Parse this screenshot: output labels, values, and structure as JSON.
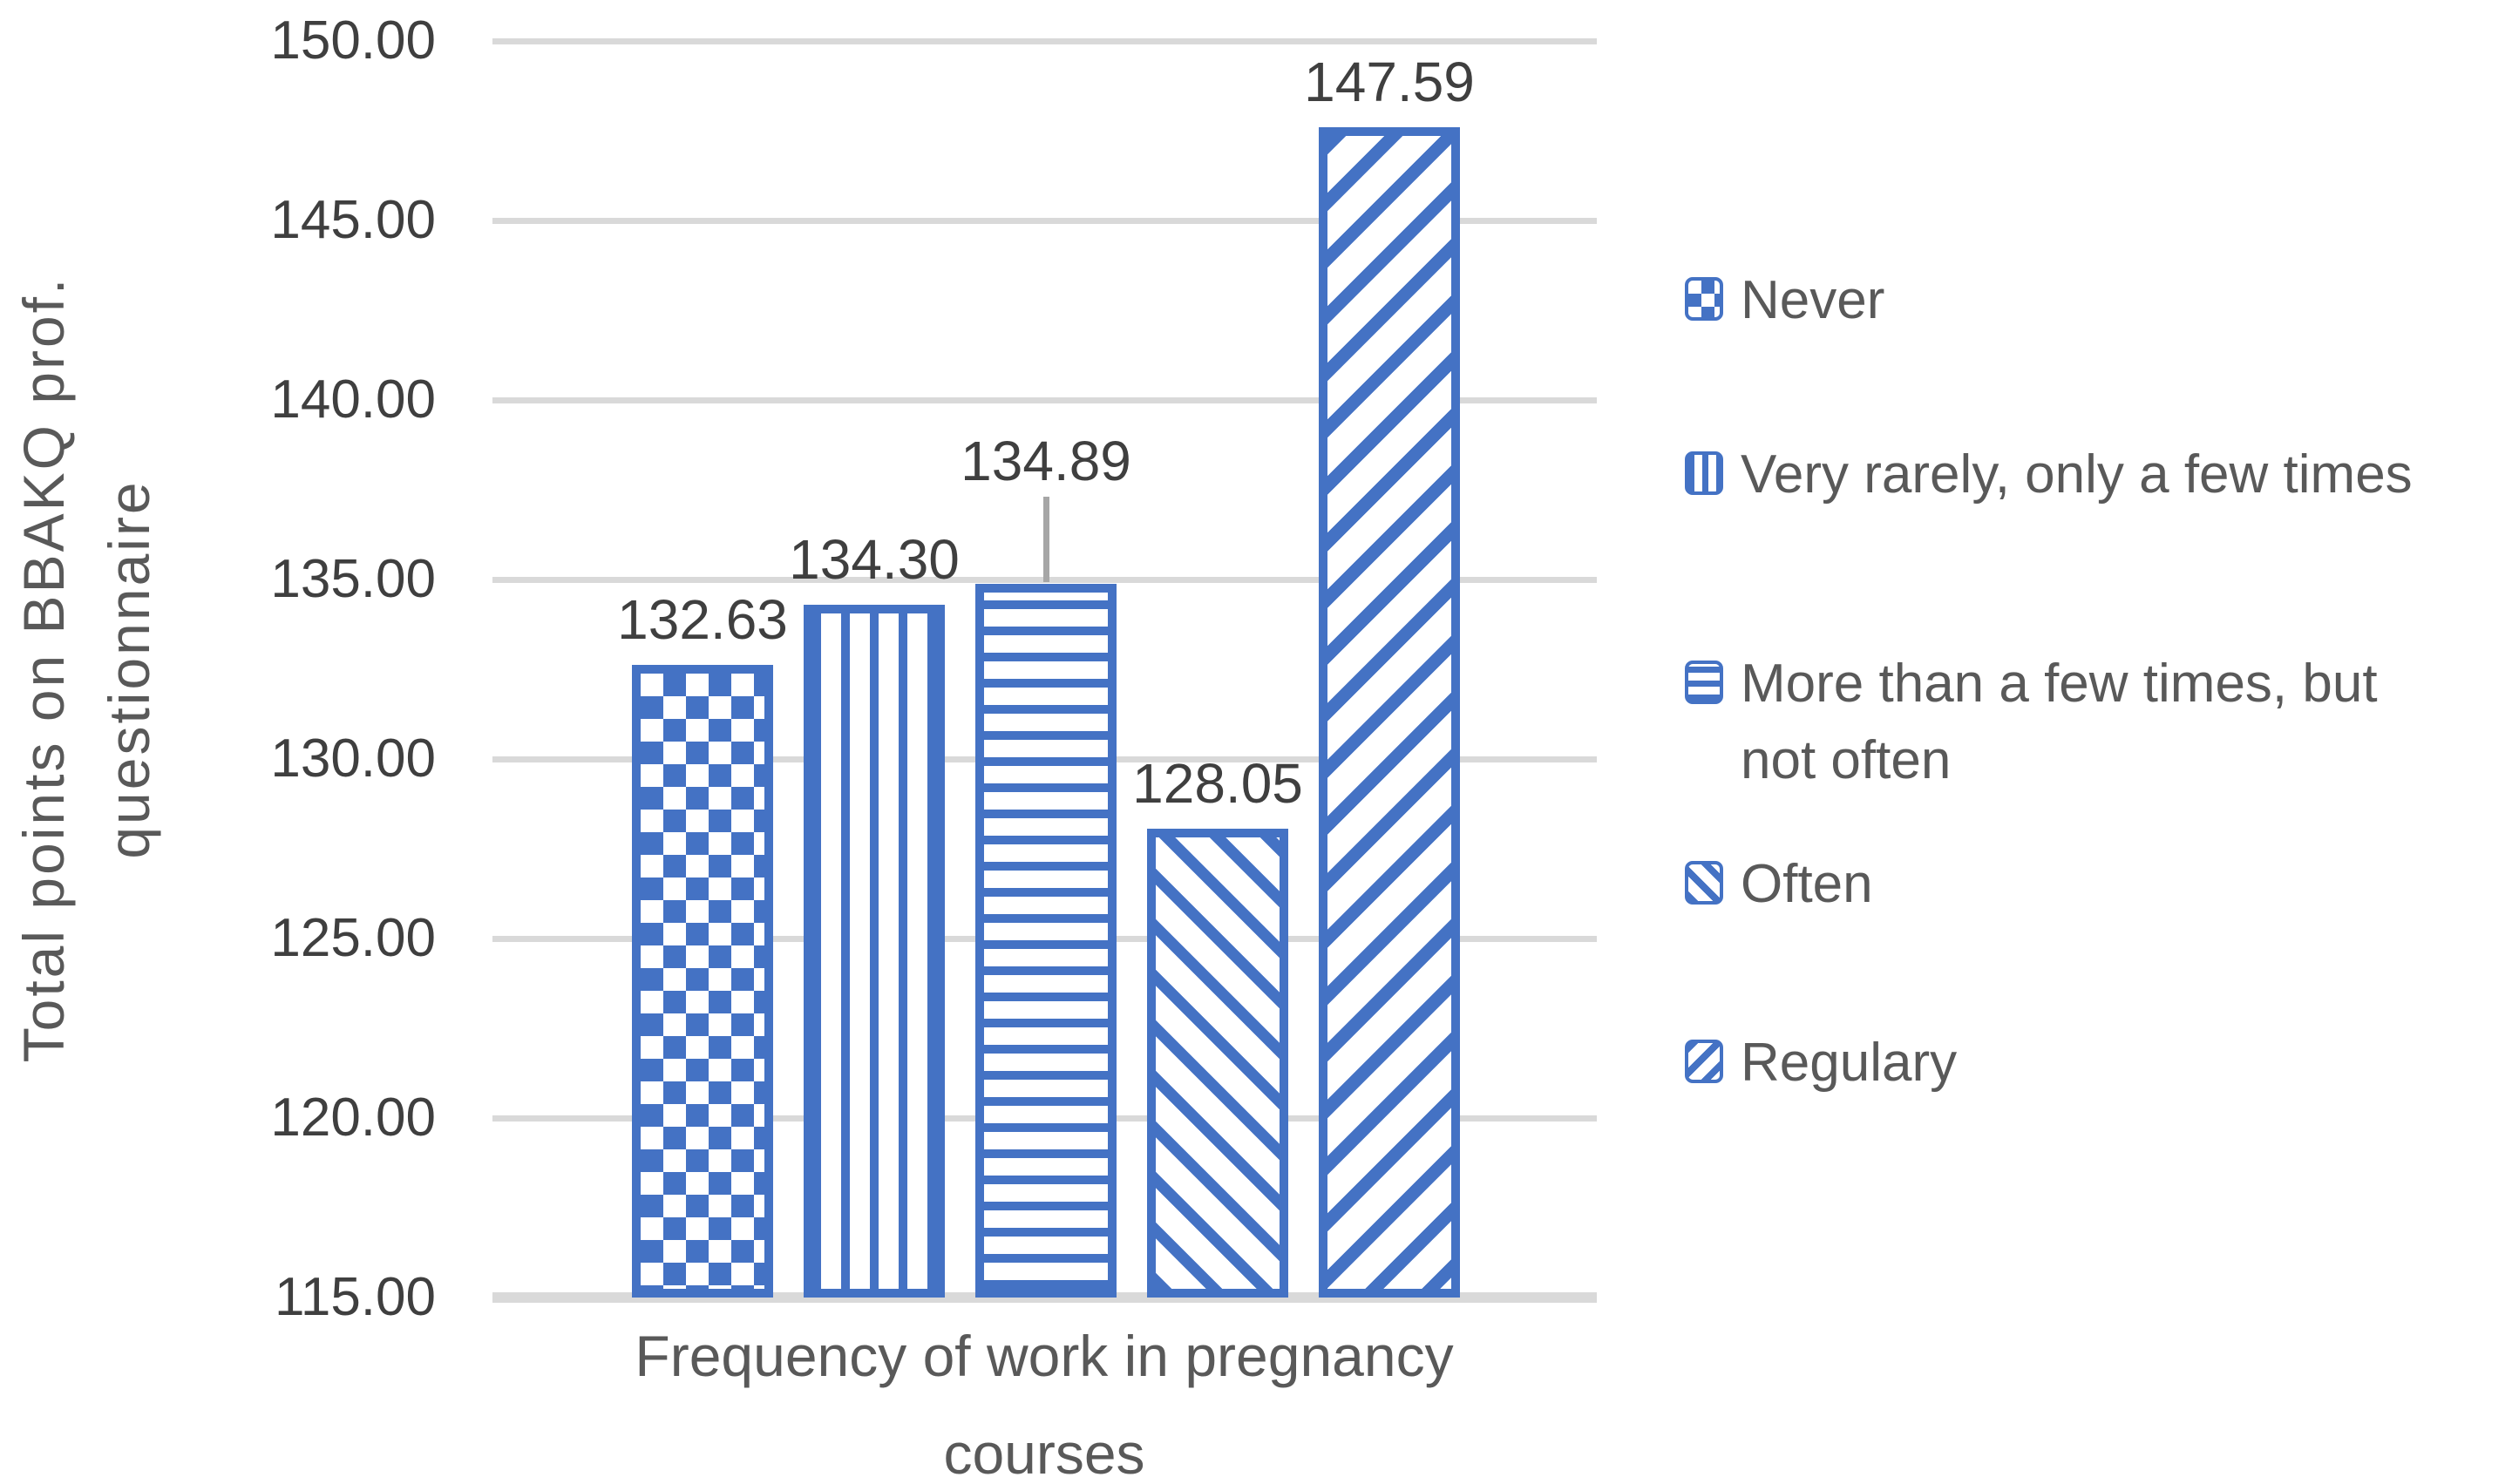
{
  "chart_data": {
    "type": "bar",
    "title": "",
    "categories": [
      "Never",
      "Very rarely, only a few times",
      "More than a few times, but not often",
      "Often",
      "Regulary"
    ],
    "values": [
      132.63,
      134.3,
      134.89,
      128.05,
      147.59
    ],
    "points": [
      {
        "category": "Never",
        "value": 132.63,
        "value_label": "132.63",
        "pattern": "checker",
        "raised_label": false
      },
      {
        "category": "Very rarely, only a few times",
        "value": 134.3,
        "value_label": "134.30",
        "pattern": "vertical-stripes",
        "raised_label": false
      },
      {
        "category": "More than a few times, but not often",
        "value": 134.89,
        "value_label": "134.89",
        "pattern": "horizontal-stripes",
        "raised_label": true
      },
      {
        "category": "Often",
        "value": 128.05,
        "value_label": "128.05",
        "pattern": "diagonal-down",
        "raised_label": false
      },
      {
        "category": "Regulary",
        "value": 147.59,
        "value_label": "147.59",
        "pattern": "diagonal-up",
        "raised_label": false
      }
    ],
    "xlabel": "Frequency of work in pregnancy courses",
    "ylabel": "Total points on BBAKQ prof. questionnaire",
    "ylim": [
      115,
      150
    ],
    "ytick_step": 5,
    "yticks": [
      {
        "value": 150,
        "label": "150.00"
      },
      {
        "value": 145,
        "label": "145.00"
      },
      {
        "value": 140,
        "label": "140.00"
      },
      {
        "value": 135,
        "label": "135.00"
      },
      {
        "value": 130,
        "label": "130.00"
      },
      {
        "value": 125,
        "label": "125.00"
      },
      {
        "value": 120,
        "label": "120.00"
      },
      {
        "value": 115,
        "label": "115.00"
      }
    ],
    "grid": true,
    "legend_position": "right"
  },
  "axis_titles": {
    "x_line1": "Frequency of work in pregnancy",
    "x_line2": "courses",
    "y_line1": "Total points on BBAKQ prof.",
    "y_line2": "questionnaire"
  },
  "legend": {
    "items": [
      {
        "name": "never",
        "lines": [
          "Never"
        ],
        "pattern": "checker"
      },
      {
        "name": "very-rarely",
        "lines": [
          "Very rarely, only a few times"
        ],
        "pattern": "vertical-stripes"
      },
      {
        "name": "more-than-a-few-times",
        "lines": [
          "More than a few times, but",
          "not often"
        ],
        "pattern": "horizontal-stripes"
      },
      {
        "name": "often",
        "lines": [
          "Often"
        ],
        "pattern": "diagonal-down"
      },
      {
        "name": "regulary",
        "lines": [
          "Regulary"
        ],
        "pattern": "diagonal-up"
      }
    ]
  },
  "colors": {
    "accent": "#4472C4",
    "gridline": "#D9D9D9",
    "leader_line": "#A6A6A6",
    "label_text": "#3F3F3F",
    "muted_text": "#595959",
    "background": "#FFFFFF"
  }
}
